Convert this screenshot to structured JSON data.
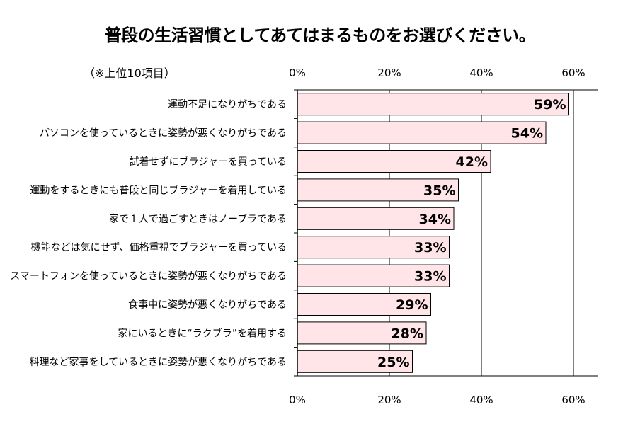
{
  "title": "普段の生活習慣としてあてはまるものをお選びください。",
  "note": "（※上位10項目）",
  "chart_data": {
    "type": "bar",
    "orientation": "horizontal",
    "categories": [
      "運動不足になりがちである",
      "パソコンを使っているときに姿勢が悪くなりがちである",
      "試着せずにブラジャーを買っている",
      "運動をするときにも普段と同じブラジャーを着用している",
      "家で１人で過ごすときはノーブラである",
      "機能などは気にせず、価格重視でブラジャーを買っている",
      "スマートフォンを使っているときに姿勢が悪くなりがちである",
      "食事中に姿勢が悪くなりがちである",
      "家にいるときに“ラクブラ”を着用する",
      "料理など家事をしているときに姿勢が悪くなりがちである"
    ],
    "values": [
      59,
      54,
      42,
      35,
      34,
      33,
      33,
      29,
      28,
      25
    ],
    "value_labels": [
      "59%",
      "54%",
      "42%",
      "35%",
      "34%",
      "33%",
      "33%",
      "29%",
      "28%",
      "25%"
    ],
    "xlim": [
      0,
      60
    ],
    "ticks": [
      0,
      20,
      40,
      60
    ],
    "tick_labels": [
      "0%",
      "20%",
      "40%",
      "60%"
    ],
    "tick_label_positions": "top-and-bottom",
    "grid": true,
    "bar_color": "#ffe4e8",
    "bar_edge_color": "#000000"
  }
}
